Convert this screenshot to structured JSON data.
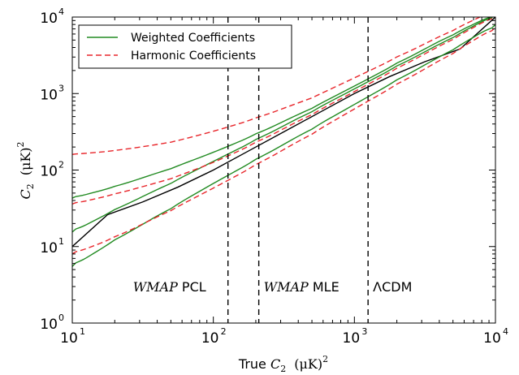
{
  "chart_data": {
    "type": "line",
    "x_scale": "log",
    "y_scale": "log",
    "xlim": [
      10,
      10000
    ],
    "ylim": [
      1,
      10000
    ],
    "x_ticks": [
      {
        "value": 10,
        "base": "10",
        "exp": "1"
      },
      {
        "value": 100,
        "base": "10",
        "exp": "2"
      },
      {
        "value": 1000,
        "base": "10",
        "exp": "3"
      },
      {
        "value": 10000,
        "base": "10",
        "exp": "4"
      }
    ],
    "y_ticks": [
      {
        "value": 1,
        "base": "10",
        "exp": "0"
      },
      {
        "value": 10,
        "base": "10",
        "exp": "1"
      },
      {
        "value": 100,
        "base": "10",
        "exp": "2"
      },
      {
        "value": 1000,
        "base": "10",
        "exp": "3"
      },
      {
        "value": 10000,
        "base": "10",
        "exp": "4"
      }
    ],
    "xlabel": {
      "prefix": "True ",
      "var": "C",
      "sub": "2",
      "unit": "(μK)",
      "sup": "2"
    },
    "ylabel": {
      "var": "C",
      "sub": "2",
      "unit": "(μK)",
      "sup": "2"
    },
    "legend": {
      "position": "top-left",
      "entries": [
        {
          "label": "Weighted Coefficients",
          "color": "#228b22",
          "style": "solid"
        },
        {
          "label": "Harmonic Coefficients",
          "color": "#e8262b",
          "style": "dashed"
        }
      ]
    },
    "series": [
      {
        "group": "identity",
        "color": "#000000",
        "style": "solid",
        "x": [
          10,
          10000
        ],
        "y": [
          10,
          10000
        ]
      },
      {
        "group": "Weighted Coefficients",
        "role": "mean",
        "color": "#228b22",
        "style": "solid",
        "x": [
          10,
          20,
          50,
          100,
          200,
          500,
          1000,
          2000,
          5000,
          10000
        ],
        "y": [
          15.5,
          30,
          68,
          130,
          245,
          590,
          1150,
          2250,
          5500,
          10800
        ]
      },
      {
        "group": "Weighted Coefficients",
        "role": "upper",
        "color": "#228b22",
        "style": "solid",
        "x": [
          10,
          20,
          50,
          100,
          200,
          500,
          1000,
          2000,
          5000,
          10000
        ],
        "y": [
          43,
          60,
          105,
          170,
          290,
          650,
          1250,
          2450,
          6000,
          11000
        ]
      },
      {
        "group": "Weighted Coefficients",
        "role": "lower",
        "color": "#228b22",
        "style": "solid",
        "x": [
          10,
          20,
          50,
          100,
          200,
          500,
          1000,
          2000,
          5000,
          10000
        ],
        "y": [
          5.5,
          12,
          32,
          67,
          135,
          350,
          720,
          1480,
          3800,
          8000
        ]
      },
      {
        "group": "Harmonic Coefficients",
        "role": "mean",
        "color": "#e8262b",
        "style": "dashed",
        "x": [
          10,
          20,
          50,
          100,
          200,
          500,
          1000,
          2000,
          5000,
          10000
        ],
        "y": [
          36,
          48,
          77,
          125,
          225,
          540,
          1060,
          2100,
          5200,
          10500
        ]
      },
      {
        "group": "Harmonic Coefficients",
        "role": "upper",
        "color": "#e8262b",
        "style": "dashed",
        "x": [
          10,
          20,
          50,
          100,
          200,
          500,
          1000,
          2000,
          5000,
          10000
        ],
        "y": [
          160,
          178,
          230,
          320,
          470,
          880,
          1600,
          2950,
          6800,
          12500
        ]
      },
      {
        "group": "Harmonic Coefficients",
        "role": "lower",
        "color": "#e8262b",
        "style": "dashed",
        "x": [
          10,
          20,
          50,
          100,
          200,
          500,
          1000,
          2000,
          5000,
          10000
        ],
        "y": [
          8,
          13,
          30,
          58,
          115,
          300,
          630,
          1300,
          3400,
          7400
        ]
      }
    ],
    "vlines": [
      {
        "x": 127,
        "label_italic": "WMAP",
        "label": " PCL"
      },
      {
        "x": 210,
        "label_italic": "WMAP",
        "label": " MLE"
      },
      {
        "x": 1250,
        "label_italic": "",
        "label": "ΛCDM"
      }
    ],
    "annotation_y": 3
  }
}
